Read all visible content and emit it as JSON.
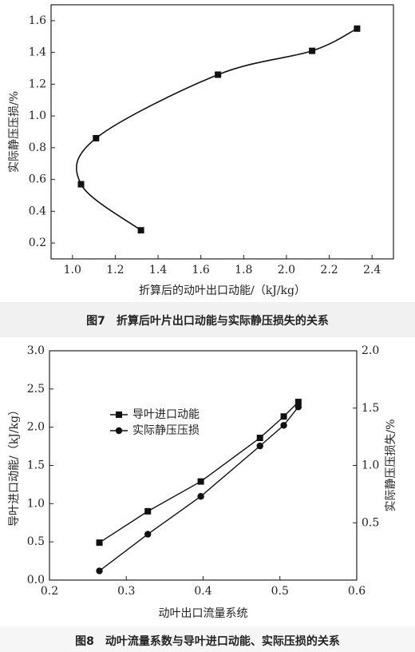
{
  "chart_data": [
    {
      "type": "scatter",
      "caption": "图7　折算后叶片出口动能与实际静压损失的关系",
      "x_label": "折算后的动叶出口动能/（kJ/kg）",
      "y_label": "实际静压压损/%",
      "trend_line": true,
      "color": "#111111",
      "marker": "square",
      "x": [
        1.32,
        1.04,
        1.11,
        1.68,
        2.12,
        2.33
      ],
      "values": [
        0.28,
        0.57,
        0.86,
        1.26,
        1.41,
        1.55
      ],
      "xlim": [
        0.9,
        2.5
      ],
      "ylim": [
        0.1,
        1.7
      ],
      "xticks": [
        {
          "value": 1.0,
          "label": "1.0"
        },
        1.2,
        1.4,
        1.6,
        1.8,
        {
          "value": 2.0,
          "label": "2.0"
        },
        2.2,
        2.4
      ],
      "yticks": [
        0.2,
        0.4,
        0.6,
        0.8,
        {
          "value": 1.0,
          "label": "1.0"
        },
        1.2,
        1.4,
        1.6
      ]
    },
    {
      "type": "line",
      "caption": "图8　动叶流量系数与导叶进口动能、实际压损的关系",
      "x_label": "动叶出口流量系统",
      "y_label": "导叶进口动能/（kJ/kg）",
      "y2_label": "实际静压压损失/%",
      "x": [
        0.265,
        0.328,
        0.397,
        0.474,
        0.505,
        0.524
      ],
      "series": [
        {
          "name": "导叶进口动能",
          "color": "#111111",
          "marker": "square",
          "values": [
            0.49,
            0.9,
            1.29,
            1.86,
            2.14,
            2.33
          ]
        },
        {
          "name": "实际静压压损",
          "color": "#111111",
          "marker": "circle",
          "axis": "y2",
          "values": [
            0.08,
            0.4,
            0.73,
            1.17,
            1.35,
            1.51
          ]
        }
      ],
      "legend": "upper-left",
      "xlim": [
        0.2,
        0.6
      ],
      "ylim": [
        0,
        3
      ],
      "y2lim": [
        0,
        2
      ],
      "xticks": [
        0.2,
        0.3,
        0.4,
        0.5,
        0.6
      ],
      "yticks": [
        {
          "value": 0,
          "label": "0.0"
        },
        0.5,
        {
          "value": 1,
          "label": "1.0"
        },
        1.5,
        {
          "value": 2,
          "label": "2.0"
        },
        2.5,
        {
          "value": 3,
          "label": "3.0"
        }
      ],
      "y2ticks": [
        0.5,
        {
          "value": 1,
          "label": "1.0"
        },
        1.5,
        {
          "value": 2,
          "label": "2.0"
        }
      ]
    }
  ]
}
